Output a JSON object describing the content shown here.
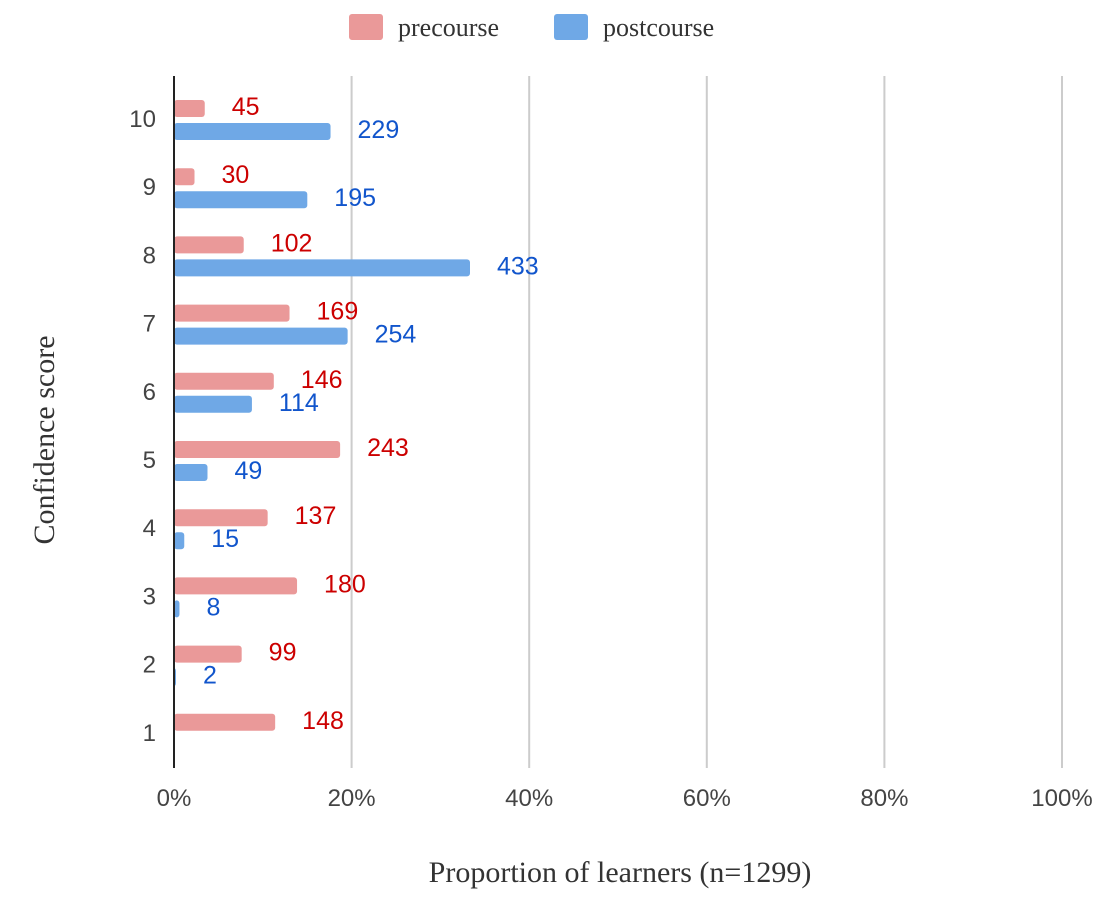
{
  "chart_data": {
    "type": "bar",
    "orientation": "horizontal",
    "categories": [
      "10",
      "9",
      "8",
      "7",
      "6",
      "5",
      "4",
      "3",
      "2",
      "1"
    ],
    "total_n": 1299,
    "series": [
      {
        "name": "precourse",
        "color": "#ea9999",
        "label_color": "#cc0000",
        "values": [
          45,
          30,
          102,
          169,
          146,
          243,
          137,
          180,
          99,
          148
        ]
      },
      {
        "name": "postcourse",
        "color": "#6fa8e6",
        "label_color": "#1155cc",
        "values": [
          229,
          195,
          433,
          254,
          114,
          49,
          15,
          8,
          2,
          null
        ]
      }
    ],
    "xlabel": "Proportion of learners (n=1299)",
    "ylabel": "Confidence score",
    "xlim": [
      0,
      1
    ],
    "xticks": [
      "0%",
      "20%",
      "40%",
      "60%",
      "80%",
      "100%"
    ],
    "grid": true,
    "legend_position": "top"
  }
}
